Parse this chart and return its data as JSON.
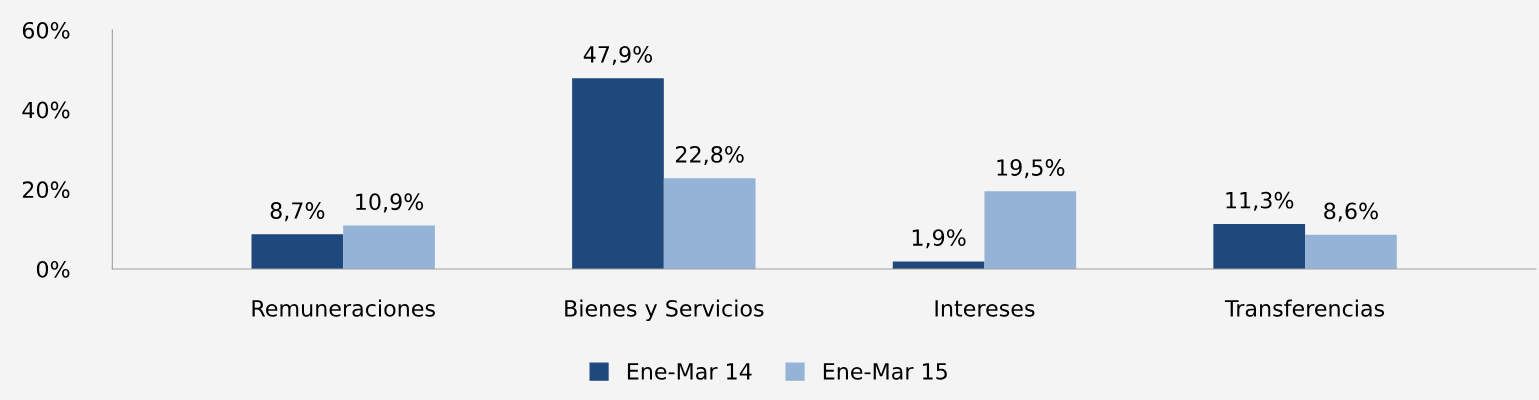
{
  "chart_data": {
    "type": "bar",
    "categories": [
      "Remuneraciones",
      "Bienes y Servicios",
      "Intereses",
      "Transferencias"
    ],
    "series": [
      {
        "name": "Ene-Mar 14",
        "color": "#1f497d",
        "values": [
          8.7,
          47.9,
          1.9,
          11.3
        ],
        "value_labels": [
          "8,7%",
          "47,9%",
          "1,9%",
          "11,3%"
        ]
      },
      {
        "name": "Ene-Mar 15",
        "color": "#95b3d7",
        "values": [
          10.9,
          22.8,
          19.5,
          8.6
        ],
        "value_labels": [
          "10,9%",
          "22,8%",
          "19,5%",
          "8,6%"
        ]
      }
    ],
    "ylim": [
      0,
      60
    ],
    "yticks": [
      {
        "value": 0,
        "label": "0%"
      },
      {
        "value": 20,
        "label": "20%"
      },
      {
        "value": 40,
        "label": "40%"
      },
      {
        "value": 60,
        "label": "60%"
      }
    ],
    "grid": false,
    "legend": "bottom"
  }
}
